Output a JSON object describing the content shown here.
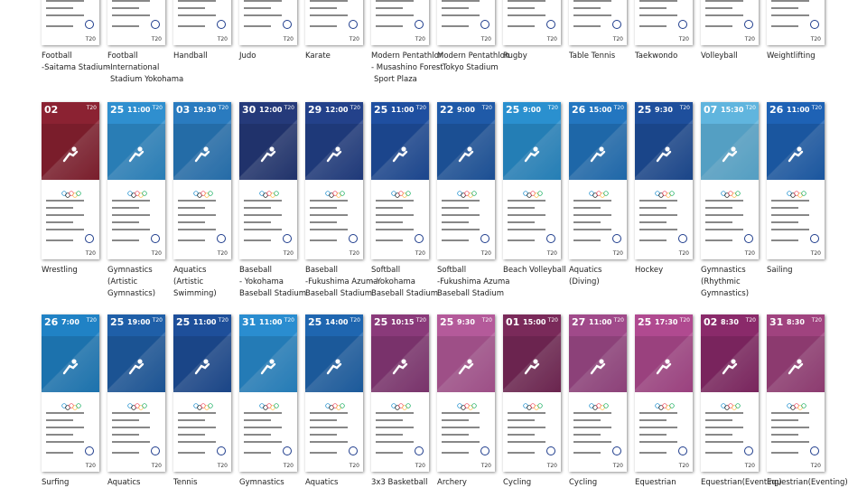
{
  "ticket_code": "T20",
  "rows": [
    {
      "tickets": [
        {
          "color": "#ffffff",
          "caption": [
            "Football",
            "-Saitama Stadium"
          ]
        },
        {
          "color": "#ffffff",
          "caption": [
            "Football",
            "-International",
            "Stadium Yokohama"
          ]
        },
        {
          "color": "#ffffff",
          "caption": [
            "Handball"
          ]
        },
        {
          "color": "#ffffff",
          "caption": [
            "Judo"
          ]
        },
        {
          "color": "#ffffff",
          "caption": [
            "Karate"
          ]
        },
        {
          "color": "#ffffff",
          "caption": [
            "Modern Pentathlon",
            "- Musashino Forest",
            "Sport Plaza"
          ]
        },
        {
          "color": "#ffffff",
          "caption": [
            "Modern Pentathlon",
            "- Tokyo Stadium"
          ]
        },
        {
          "color": "#ffffff",
          "caption": [
            "Rugby"
          ]
        },
        {
          "color": "#ffffff",
          "caption": [
            "Table Tennis"
          ]
        },
        {
          "color": "#ffffff",
          "caption": [
            "Taekwondo"
          ]
        },
        {
          "color": "#ffffff",
          "caption": [
            "Volleyball"
          ]
        },
        {
          "color": "#ffffff",
          "caption": [
            "Weightlifting"
          ]
        }
      ]
    },
    {
      "tickets": [
        {
          "day": "02",
          "color": "#8b2232",
          "caption": [
            "Wrestling"
          ]
        },
        {
          "day": "25",
          "time": "11:00",
          "color": "#2f8fcf",
          "caption": [
            "Gymnastics",
            "(Artistic",
            "Gymnastics)"
          ]
        },
        {
          "day": "03",
          "time": "19:30",
          "color": "#2a7bbf",
          "caption": [
            "Aquatics",
            "(Artistic",
            "Swimming)"
          ]
        },
        {
          "day": "30",
          "time": "12:00",
          "color": "#253a7a",
          "caption": [
            "Baseball",
            "- Yokohama",
            "Baseball Stadium"
          ]
        },
        {
          "day": "29",
          "time": "12:00",
          "color": "#23418a",
          "caption": [
            "Baseball",
            "-Fukushima Azuma",
            "Baseball Stadium"
          ]
        },
        {
          "day": "25",
          "time": "11:00",
          "color": "#1f4fa0",
          "caption": [
            "Softball",
            "- Yokohama",
            "Baseball Stadium"
          ]
        },
        {
          "day": "22",
          "time": "9:00",
          "color": "#1f5aa8",
          "caption": [
            "Softball",
            "-Fukushima Azuma",
            "Baseball Stadium"
          ]
        },
        {
          "day": "25",
          "time": "9:00",
          "color": "#2a90cf",
          "caption": [
            "Beach Volleyball"
          ]
        },
        {
          "day": "26",
          "time": "15:00",
          "color": "#2376c0",
          "caption": [
            "Aquatics",
            "(Diving)"
          ]
        },
        {
          "day": "25",
          "time": "9:30",
          "color": "#1e4f9c",
          "caption": [
            "Hockey"
          ]
        },
        {
          "day": "07",
          "time": "15:30",
          "color": "#60b5de",
          "caption": [
            "Gymnastics",
            "(Rhythmic",
            "Gymnastics)"
          ]
        },
        {
          "day": "26",
          "time": "11:00",
          "color": "#1e62b5",
          "caption": [
            "Sailing"
          ]
        }
      ]
    },
    {
      "tickets": [
        {
          "day": "26",
          "time": "7:00",
          "color": "#2082c5",
          "caption": [
            "Surfing"
          ]
        },
        {
          "day": "25",
          "time": "19:00",
          "color": "#1f5fa8",
          "caption": [
            "Aquatics"
          ]
        },
        {
          "day": "25",
          "time": "11:00",
          "color": "#1e4f9a",
          "caption": [
            "Tennis"
          ]
        },
        {
          "day": "31",
          "time": "11:00",
          "color": "#2a8dd0",
          "caption": [
            "Gymnastics"
          ]
        },
        {
          "day": "25",
          "time": "14:00",
          "color": "#1f66b0",
          "caption": [
            "Aquatics"
          ]
        },
        {
          "day": "25",
          "time": "10:15",
          "color": "#8a3a7a",
          "caption": [
            "3x3 Basketball"
          ]
        },
        {
          "day": "25",
          "time": "9:30",
          "color": "#b45a9a",
          "caption": [
            "Archery"
          ]
        },
        {
          "day": "01",
          "time": "15:00",
          "color": "#7a2a5a",
          "caption": [
            "Cycling"
          ]
        },
        {
          "day": "27",
          "time": "11:00",
          "color": "#a04a8a",
          "caption": [
            "Cycling"
          ]
        },
        {
          "day": "25",
          "time": "17:30",
          "color": "#b04a90",
          "caption": [
            "Equestrian"
          ]
        },
        {
          "day": "02",
          "time": "8:30",
          "color": "#8a2a6a",
          "caption": [
            "Equestrian(Eventing)"
          ]
        },
        {
          "day": "31",
          "time": "8:30",
          "color": "#a0437f",
          "caption": [
            "Equestrian(Eventing)"
          ]
        }
      ]
    }
  ]
}
